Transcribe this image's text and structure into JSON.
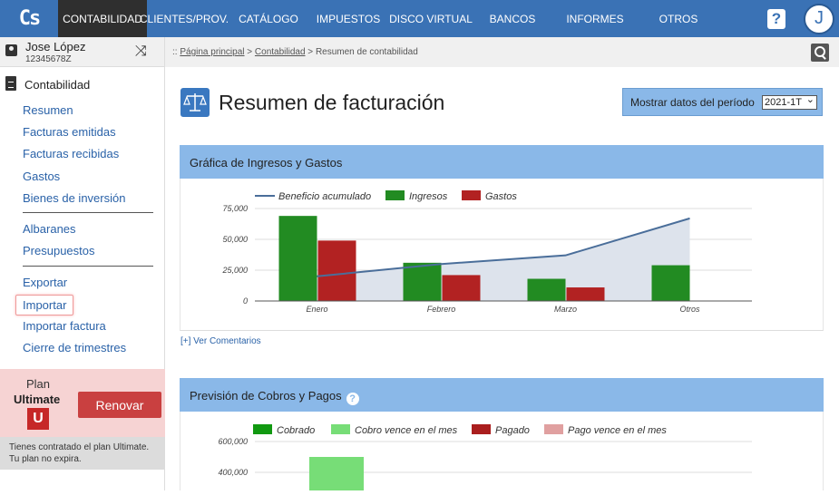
{
  "logo": "Cs",
  "nav": [
    {
      "label": "CONTABILIDAD",
      "active": true
    },
    {
      "label": "CLIENTES/PROV.",
      "active": false
    },
    {
      "label": "CATÁLOGO",
      "active": false
    },
    {
      "label": "IMPUESTOS",
      "active": false
    },
    {
      "label": "DISCO VIRTUAL",
      "active": false
    },
    {
      "label": "BANCOS",
      "active": false
    },
    {
      "label": "INFORMES",
      "active": false
    },
    {
      "label": "OTROS",
      "active": false
    }
  ],
  "topbar": {
    "help": "?",
    "avatar": "J"
  },
  "user": {
    "name": "Jose López",
    "id": "12345678Z"
  },
  "sidebar": {
    "section": "Contabilidad",
    "items": [
      "Resumen",
      "Facturas emitidas",
      "Facturas recibidas",
      "Gastos",
      "Bienes de inversión",
      "Albaranes",
      "Presupuestos",
      "Exportar",
      "Importar",
      "Importar factura",
      "Cierre de trimestres"
    ]
  },
  "plan": {
    "label": "Plan",
    "name": "Ultimate",
    "badge": "U",
    "renew": "Renovar",
    "note_line1": "Tienes contratado el plan Ultimate.",
    "note_line2": "Tu plan no expira."
  },
  "breadcrumb": {
    "prefix": ":: ",
    "home": "Página principal",
    "sep": " > ",
    "section": "Contabilidad",
    "current": "Resumen de contabilidad"
  },
  "page": {
    "title": "Resumen de facturación",
    "period_label": "Mostrar datos del período",
    "period_value": "2021-1T"
  },
  "panel1": {
    "title": "Gráfica de Ingresos y Gastos",
    "comments": "[+] Ver Comentarios"
  },
  "panel2": {
    "title": "Previsión de Cobros y Pagos",
    "help": "?"
  },
  "colors": {
    "ingresos": "#228b22",
    "gastos": "#b22222",
    "beneficio": "#4a6e9a",
    "cobrado": "#119911",
    "cobro_vence": "#77dd77",
    "pagado": "#aa1e1e",
    "pago_vence": "#e0a0a0"
  },
  "chart_data": [
    {
      "type": "bar",
      "categories": [
        "Enero",
        "Febrero",
        "Marzo",
        "Otros"
      ],
      "ylim": [
        0,
        75000
      ],
      "yticks": [
        "0",
        "25,000",
        "50,000",
        "75,000"
      ],
      "ytick_values": [
        0,
        25000,
        50000,
        75000
      ],
      "legend": [
        "Beneficio acumulado",
        "Ingresos",
        "Gastos"
      ],
      "series": [
        {
          "name": "Ingresos",
          "values": [
            69000,
            31000,
            18000,
            29000
          ]
        },
        {
          "name": "Gastos",
          "values": [
            49000,
            21000,
            11000,
            0
          ]
        },
        {
          "name": "Beneficio acumulado",
          "kind": "area-line",
          "values": [
            20000,
            30000,
            37000,
            67000
          ]
        }
      ]
    },
    {
      "type": "bar",
      "categories": [
        ""
      ],
      "ylim": [
        0,
        600000
      ],
      "yticks": [
        "400,000",
        "600,000"
      ],
      "ytick_values": [
        400000,
        600000
      ],
      "legend": [
        "Cobrado",
        "Cobro vence en el mes",
        "Pagado",
        "Pago vence en el mes"
      ],
      "series": [
        {
          "name": "Cobro vence en el mes",
          "values": [
            500000
          ]
        }
      ]
    }
  ]
}
